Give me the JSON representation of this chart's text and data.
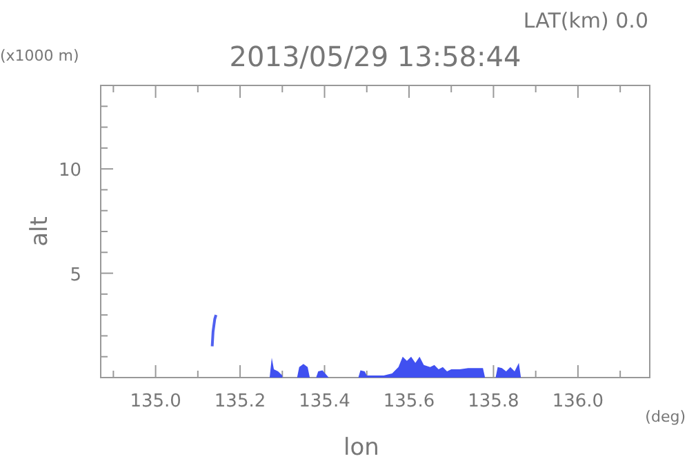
{
  "chart_data": {
    "type": "area",
    "title": "2013/05/29 13:58:44",
    "xlabel": "lon",
    "ylabel": "alt",
    "annotations": [
      "LAT(km) 0.0",
      "(x1000 m)",
      "(deg)"
    ],
    "xlim": [
      134.87,
      136.17
    ],
    "xticks": [
      {
        "value": 134.9,
        "label": null
      },
      {
        "value": 135,
        "label": "135.0"
      },
      {
        "value": 135.1,
        "label": null
      },
      {
        "value": 135.2,
        "label": "135.2"
      },
      {
        "value": 135.3,
        "label": null
      },
      {
        "value": 135.4,
        "label": "135.4"
      },
      {
        "value": 135.5,
        "label": null
      },
      {
        "value": 135.6,
        "label": "135.6"
      },
      {
        "value": 135.7,
        "label": null
      },
      {
        "value": 135.8,
        "label": "135.8"
      },
      {
        "value": 135.9,
        "label": null
      },
      {
        "value": 136,
        "label": "136.0"
      },
      {
        "value": 136.1,
        "label": null
      }
    ],
    "ylim": [
      0,
      14
    ],
    "yticks": [
      {
        "value": 1,
        "label": null
      },
      {
        "value": 2,
        "label": null
      },
      {
        "value": 3,
        "label": null
      },
      {
        "value": 4,
        "label": null
      },
      5,
      {
        "value": 6,
        "label": null
      },
      {
        "value": 7,
        "label": null
      },
      {
        "value": 8,
        "label": null
      },
      {
        "value": 9,
        "label": null
      },
      10,
      {
        "value": 11,
        "label": null
      },
      {
        "value": 12,
        "label": null
      },
      {
        "value": 13,
        "label": null
      }
    ],
    "grid": false,
    "series": [
      {
        "type": "line",
        "color": "#5060f0",
        "x": [
          135.134,
          135.136,
          135.14,
          135.143
        ],
        "values": [
          1.5,
          2.2,
          2.8,
          3.0
        ]
      },
      {
        "color": "#4050f0",
        "x": [
          135.27,
          135.275,
          135.28,
          135.29,
          135.3,
          135.31,
          135.335,
          135.34,
          135.35,
          135.36,
          135.365,
          135.37,
          135.38,
          135.385,
          135.395,
          135.41,
          135.44,
          135.48,
          135.485,
          135.495,
          135.5,
          135.52,
          135.54,
          135.56,
          135.575,
          135.585,
          135.595,
          135.605,
          135.615,
          135.625,
          135.635,
          135.65,
          135.66,
          135.67,
          135.68,
          135.69,
          135.7,
          135.72,
          135.74,
          135.76,
          135.775,
          135.78,
          135.79,
          135.805,
          135.81,
          135.82,
          135.83,
          135.84,
          135.85,
          135.86,
          135.865
        ],
        "values": [
          0,
          0.95,
          0.4,
          0.3,
          0.1,
          null,
          0,
          0.5,
          0.65,
          0.5,
          0,
          null,
          0,
          0.3,
          0.35,
          0,
          null,
          0,
          0.35,
          0.3,
          0.1,
          0.1,
          0.1,
          0.2,
          0.5,
          1.0,
          0.8,
          1.0,
          0.7,
          1.0,
          0.6,
          0.5,
          0.6,
          0.4,
          0.5,
          0.3,
          0.4,
          0.4,
          0.45,
          0.45,
          0.45,
          0,
          null,
          0,
          0.5,
          0.45,
          0.3,
          0.5,
          0.3,
          0.7,
          0
        ]
      }
    ]
  }
}
